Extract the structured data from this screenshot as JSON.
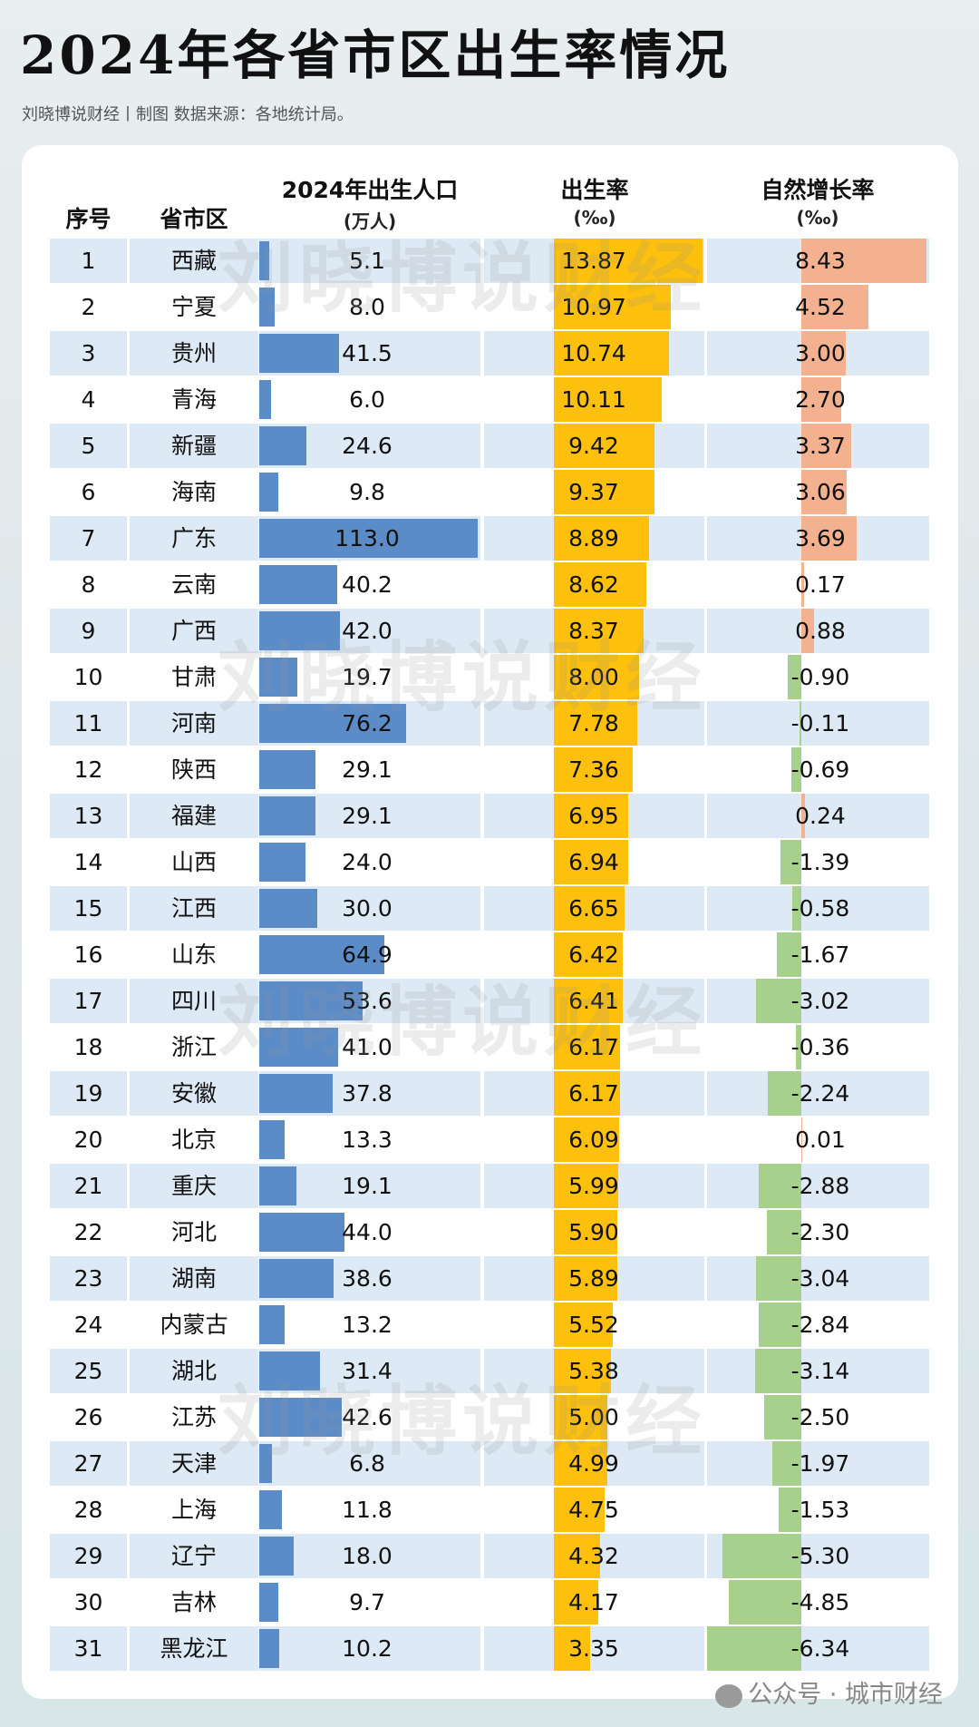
{
  "title": "2024年各省市区出生率情况",
  "subtitle": "刘晓博说财经丨制图   数据来源：各地统计局。",
  "watermark": "刘晓博说财经",
  "footer": "公众号 · 城市财经",
  "colors": {
    "population_bar": "#5b8cc8",
    "birth_rate_bar": "#fdc00d",
    "natural_positive": "#f4b18f",
    "natural_negative": "#a8d08d",
    "row_alt": "#dde9f5"
  },
  "chart_data": {
    "type": "table",
    "headers": {
      "seq": "序号",
      "region": "省市区",
      "births": "2024年出生人口",
      "births_unit": "(万人)",
      "birth_rate": "出生率",
      "birth_rate_unit": "(‰)",
      "natural": "自然增长率",
      "natural_unit": "(‰)"
    },
    "rows": [
      [
        1,
        "西藏",
        "5.1",
        "13.87",
        "8.43"
      ],
      [
        2,
        "宁夏",
        "8.0",
        "10.97",
        "4.52"
      ],
      [
        3,
        "贵州",
        "41.5",
        "10.74",
        "3.00"
      ],
      [
        4,
        "青海",
        "6.0",
        "10.11",
        "2.70"
      ],
      [
        5,
        "新疆",
        "24.6",
        "9.42",
        "3.37"
      ],
      [
        6,
        "海南",
        "9.8",
        "9.37",
        "3.06"
      ],
      [
        7,
        "广东",
        "113.0",
        "8.89",
        "3.69"
      ],
      [
        8,
        "云南",
        "40.2",
        "8.62",
        "0.17"
      ],
      [
        9,
        "广西",
        "42.0",
        "8.37",
        "0.88"
      ],
      [
        10,
        "甘肃",
        "19.7",
        "8.00",
        "-0.90"
      ],
      [
        11,
        "河南",
        "76.2",
        "7.78",
        "-0.11"
      ],
      [
        12,
        "陕西",
        "29.1",
        "7.36",
        "-0.69"
      ],
      [
        13,
        "福建",
        "29.1",
        "6.95",
        "0.24"
      ],
      [
        14,
        "山西",
        "24.0",
        "6.94",
        "-1.39"
      ],
      [
        15,
        "江西",
        "30.0",
        "6.65",
        "-0.58"
      ],
      [
        16,
        "山东",
        "64.9",
        "6.42",
        "-1.67"
      ],
      [
        17,
        "四川",
        "53.6",
        "6.41",
        "-3.02"
      ],
      [
        18,
        "浙江",
        "41.0",
        "6.17",
        "-0.36"
      ],
      [
        19,
        "安徽",
        "37.8",
        "6.17",
        "-2.24"
      ],
      [
        20,
        "北京",
        "13.3",
        "6.09",
        "0.01"
      ],
      [
        21,
        "重庆",
        "19.1",
        "5.99",
        "-2.88"
      ],
      [
        22,
        "河北",
        "44.0",
        "5.90",
        "-2.30"
      ],
      [
        23,
        "湖南",
        "38.6",
        "5.89",
        "-3.04"
      ],
      [
        24,
        "内蒙古",
        "13.2",
        "5.52",
        "-2.84"
      ],
      [
        25,
        "湖北",
        "31.4",
        "5.38",
        "-3.14"
      ],
      [
        26,
        "江苏",
        "42.6",
        "5.00",
        "-2.50"
      ],
      [
        27,
        "天津",
        "6.8",
        "4.99",
        "-1.97"
      ],
      [
        28,
        "上海",
        "11.8",
        "4.75",
        "-1.53"
      ],
      [
        29,
        "辽宁",
        "18.0",
        "4.32",
        "-5.30"
      ],
      [
        30,
        "吉林",
        "9.7",
        "4.17",
        "-4.85"
      ],
      [
        31,
        "黑龙江",
        "10.2",
        "3.35",
        "-6.34"
      ]
    ]
  }
}
